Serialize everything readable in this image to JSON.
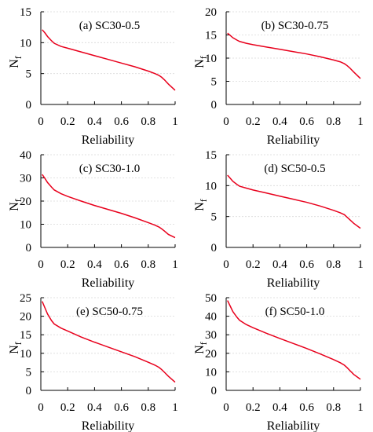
{
  "figure": {
    "line_color": "#e8001c",
    "grid_color": "#d9d9d9"
  },
  "chart_data": [
    {
      "type": "line",
      "title": "(a) SC30-0.5",
      "xlabel": "Reliability",
      "ylabel": "N_f",
      "xlim": [
        0,
        1
      ],
      "ylim": [
        0,
        15
      ],
      "xticks": [
        "0",
        "0.2",
        "0.4",
        "0.6",
        "0.8",
        "1"
      ],
      "yticks": [
        "0",
        "5",
        "10",
        "15"
      ],
      "grid": true,
      "series": [
        {
          "x": [
            0.01,
            0.03,
            0.05,
            0.08,
            0.1,
            0.15,
            0.2,
            0.3,
            0.4,
            0.5,
            0.6,
            0.7,
            0.8,
            0.85,
            0.88,
            0.9,
            0.92,
            0.95,
            1.0
          ],
          "y": [
            12.1,
            11.6,
            11.0,
            10.3,
            9.9,
            9.4,
            9.1,
            8.5,
            7.9,
            7.3,
            6.7,
            6.1,
            5.4,
            5.0,
            4.7,
            4.4,
            4.0,
            3.3,
            2.3
          ]
        }
      ]
    },
    {
      "type": "line",
      "title": "(b) SC30-0.75",
      "xlabel": "Reliability",
      "ylabel": "N_f",
      "xlim": [
        0,
        1
      ],
      "ylim": [
        0,
        20
      ],
      "xticks": [
        "0",
        "0.2",
        "0.4",
        "0.6",
        "0.8",
        "1"
      ],
      "yticks": [
        "0",
        "5",
        "10",
        "15",
        "20"
      ],
      "grid": true,
      "series": [
        {
          "x": [
            0.01,
            0.03,
            0.05,
            0.08,
            0.1,
            0.15,
            0.2,
            0.3,
            0.4,
            0.5,
            0.6,
            0.7,
            0.8,
            0.85,
            0.88,
            0.9,
            0.92,
            0.95,
            1.0
          ],
          "y": [
            15.4,
            14.9,
            14.4,
            13.9,
            13.6,
            13.2,
            12.9,
            12.4,
            11.9,
            11.4,
            10.9,
            10.3,
            9.6,
            9.2,
            8.8,
            8.4,
            7.9,
            7.0,
            5.6
          ]
        }
      ]
    },
    {
      "type": "line",
      "title": "(c) SC30-1.0",
      "xlabel": "Reliability",
      "ylabel": "N_f",
      "xlim": [
        0,
        1
      ],
      "ylim": [
        0,
        40
      ],
      "xticks": [
        "0",
        "0.2",
        "0.4",
        "0.6",
        "0.8",
        "1"
      ],
      "yticks": [
        "0",
        "10",
        "20",
        "30",
        "40"
      ],
      "grid": true,
      "series": [
        {
          "x": [
            0.01,
            0.03,
            0.05,
            0.08,
            0.1,
            0.15,
            0.2,
            0.3,
            0.4,
            0.5,
            0.6,
            0.7,
            0.8,
            0.85,
            0.88,
            0.9,
            0.92,
            0.95,
            1.0
          ],
          "y": [
            31.5,
            29.8,
            28.0,
            26.0,
            24.8,
            23.2,
            22.0,
            20.0,
            18.1,
            16.4,
            14.7,
            12.8,
            10.7,
            9.6,
            8.8,
            8.0,
            7.1,
            5.6,
            4.2
          ]
        }
      ]
    },
    {
      "type": "line",
      "title": "(d) SC50-0.5",
      "xlabel": "Reliability",
      "ylabel": "N_f",
      "xlim": [
        0,
        1
      ],
      "ylim": [
        0,
        15
      ],
      "xticks": [
        "0",
        "0.2",
        "0.4",
        "0.6",
        "0.8",
        "1"
      ],
      "yticks": [
        "0",
        "5",
        "10",
        "15"
      ],
      "grid": true,
      "series": [
        {
          "x": [
            0.01,
            0.03,
            0.05,
            0.08,
            0.1,
            0.15,
            0.2,
            0.3,
            0.4,
            0.5,
            0.6,
            0.7,
            0.8,
            0.85,
            0.88,
            0.9,
            0.92,
            0.95,
            1.0
          ],
          "y": [
            11.7,
            11.2,
            10.7,
            10.2,
            9.9,
            9.6,
            9.3,
            8.8,
            8.3,
            7.8,
            7.3,
            6.7,
            6.0,
            5.6,
            5.3,
            4.9,
            4.5,
            3.9,
            3.1
          ]
        }
      ]
    },
    {
      "type": "line",
      "title": "(e) SC50-0.75",
      "xlabel": "Reliability",
      "ylabel": "N_f",
      "xlim": [
        0,
        1
      ],
      "ylim": [
        0,
        25
      ],
      "xticks": [
        "0",
        "0.2",
        "0.4",
        "0.6",
        "0.8",
        "1"
      ],
      "yticks": [
        "0",
        "5",
        "10",
        "15",
        "20",
        "25"
      ],
      "grid": true,
      "series": [
        {
          "x": [
            0.01,
            0.03,
            0.05,
            0.08,
            0.1,
            0.15,
            0.2,
            0.3,
            0.4,
            0.5,
            0.6,
            0.7,
            0.8,
            0.85,
            0.88,
            0.9,
            0.92,
            0.95,
            1.0
          ],
          "y": [
            24.0,
            22.3,
            20.6,
            18.8,
            17.9,
            16.8,
            16.0,
            14.4,
            13.0,
            11.7,
            10.4,
            9.1,
            7.6,
            6.8,
            6.2,
            5.6,
            4.9,
            3.8,
            2.2
          ]
        }
      ]
    },
    {
      "type": "line",
      "title": "(f) SC50-1.0",
      "xlabel": "Reliability",
      "ylabel": "N_f",
      "xlim": [
        0,
        1
      ],
      "ylim": [
        0,
        50
      ],
      "xticks": [
        "0",
        "0.2",
        "0.4",
        "0.6",
        "0.8",
        "1"
      ],
      "yticks": [
        "0",
        "10",
        "20",
        "30",
        "40",
        "50"
      ],
      "grid": true,
      "series": [
        {
          "x": [
            0.01,
            0.03,
            0.05,
            0.08,
            0.1,
            0.15,
            0.2,
            0.3,
            0.4,
            0.5,
            0.6,
            0.7,
            0.8,
            0.85,
            0.88,
            0.9,
            0.92,
            0.95,
            1.0
          ],
          "y": [
            48.5,
            45.5,
            42.5,
            39.5,
            37.8,
            35.5,
            33.8,
            30.8,
            28.0,
            25.3,
            22.6,
            19.7,
            16.6,
            14.9,
            13.6,
            12.3,
            10.8,
            8.6,
            6.0
          ]
        }
      ]
    }
  ]
}
